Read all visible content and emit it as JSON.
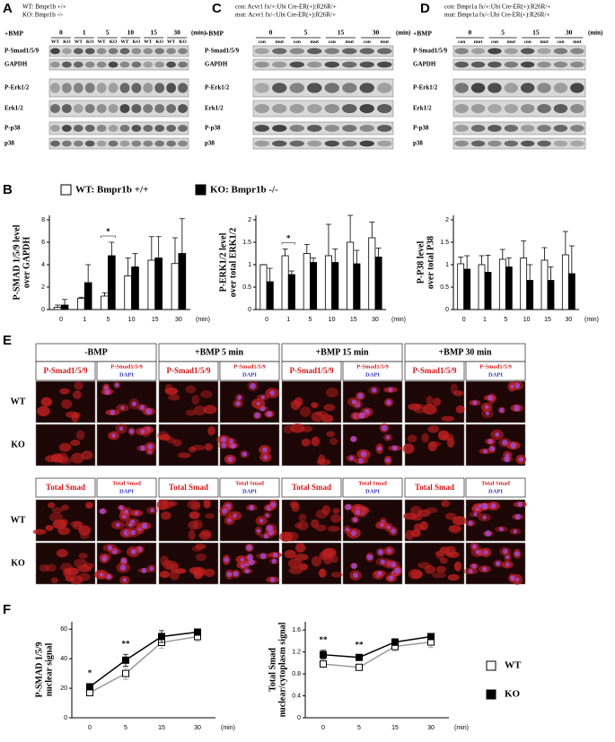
{
  "panel_a": {
    "label": "A",
    "genotype_lines": [
      "WT: Bmpr1b +/+",
      "KO: Bmpr1b -/-"
    ],
    "treatment": "+BMP",
    "timepoints": [
      "0",
      "1",
      "5",
      "10",
      "15",
      "30"
    ],
    "unit": "(min)",
    "lanes": [
      "WT",
      "KO",
      "WT",
      "KO",
      "WT",
      "KO",
      "WT",
      "KO",
      "WT",
      "KO",
      "WT",
      "KO"
    ],
    "rows": [
      "P-Smad1/5/9",
      "GAPDH",
      "P-Erk1/2",
      "Erk1/2",
      "P-p38",
      "p38"
    ]
  },
  "panel_c": {
    "label": "C",
    "genotype_lines": [
      "con: Acvr1 fx/+:Ubi Cre-ER(+):R26R/+",
      "mut: Acvr1 fx/-:Ubi Cre-ER(+):R26R/+"
    ],
    "treatment": "+BMP",
    "timepoints": [
      "0",
      "5",
      "15",
      "30"
    ],
    "unit": "(min)",
    "lanes": [
      "con",
      "mut",
      "con",
      "mut",
      "con",
      "mut",
      "con",
      "mut"
    ],
    "rows": [
      "P-Smad1/5/9",
      "GAPDH",
      "P-Erk1/2",
      "Erk1/2",
      "P-p38",
      "p38"
    ]
  },
  "panel_d": {
    "label": "D",
    "genotype_lines": [
      "con: Bmpr1a fx/+:Ubi Cre-ER(+):R26R/+",
      "mut: Bmpr1a fx/-:Ubi Cre-ER(+):R26R/+"
    ],
    "treatment": "+BMP",
    "timepoints": [
      "0",
      "5",
      "15",
      "30"
    ],
    "unit": "(min)",
    "lanes": [
      "con",
      "mut",
      "con",
      "mut",
      "con",
      "mut",
      "con",
      "mut"
    ],
    "rows": [
      "P-Smad1/5/9",
      "GAPDH",
      "P-Erk1/2",
      "Erk1/2",
      "P-p38",
      "p38"
    ]
  },
  "panel_b": {
    "label": "B"
  },
  "panel_e": {
    "label": "E",
    "columns": [
      "-BMP",
      "+BMP 5 min",
      "+BMP 15 min",
      "+BMP 30 min"
    ],
    "rows": [
      "WT",
      "KO"
    ],
    "blocks": [
      {
        "stain": "P-Smad1/5/9",
        "merge": [
          "P-Smad1/5/9",
          "DAPI"
        ]
      },
      {
        "stain": "Total Smad",
        "merge": [
          "Total Smad",
          "DAPI"
        ]
      }
    ]
  },
  "panel_f": {
    "label": "F"
  },
  "chart_data": [
    {
      "type": "bar",
      "ylabel": [
        "P-SMAD 1/5/9 level",
        "over GAPDH"
      ],
      "xlabel": "(min)",
      "categories": [
        "0",
        "1",
        "5",
        "10",
        "15",
        "30"
      ],
      "series": [
        {
          "name": "WT: Bmpr1b +/+",
          "color": "#ffffff",
          "values": [
            0.2,
            1.0,
            1.2,
            3.0,
            4.4,
            4.1
          ],
          "errors": [
            0.2,
            0.1,
            0.3,
            1.6,
            2.1,
            2.3
          ]
        },
        {
          "name": "KO: Bmpr1b -/-",
          "color": "#000000",
          "values": [
            0.4,
            2.4,
            4.8,
            3.8,
            4.6,
            5.0
          ],
          "errors": [
            0.5,
            1.6,
            1.2,
            1.2,
            1.9,
            3.1
          ]
        }
      ],
      "ylim": [
        0,
        8.4
      ],
      "yticks": [
        0,
        2,
        4,
        6,
        8
      ],
      "annotations": [
        {
          "text": "*",
          "at": "5"
        }
      ]
    },
    {
      "type": "bar",
      "ylabel": [
        "P-ERK1/2 level",
        "over total ERK1/2"
      ],
      "xlabel": "(min)",
      "categories": [
        "0",
        "1",
        "5",
        "10",
        "15",
        "30"
      ],
      "series": [
        {
          "name": "WT: Bmpr1b +/+",
          "color": "#ffffff",
          "values": [
            1.0,
            1.2,
            1.25,
            1.2,
            1.5,
            1.6
          ],
          "errors": [
            0,
            0.15,
            0.2,
            0.7,
            0.6,
            0.35
          ]
        },
        {
          "name": "KO: Bmpr1b -/-",
          "color": "#000000",
          "values": [
            0.62,
            0.78,
            1.05,
            1.05,
            1.02,
            1.17
          ],
          "errors": [
            0.3,
            0.08,
            0.1,
            0.3,
            0.3,
            0.2
          ]
        }
      ],
      "ylim": [
        0,
        2.1
      ],
      "yticks": [
        0,
        0.5,
        1,
        1.5,
        2
      ],
      "annotations": [
        {
          "text": "*",
          "at": "1"
        }
      ]
    },
    {
      "type": "bar",
      "ylabel": [
        "P-P38 level",
        "over total P38"
      ],
      "xlabel": "(min)",
      "categories": [
        "0",
        "1",
        "5",
        "10",
        "15",
        "30"
      ],
      "series": [
        {
          "name": "WT: Bmpr1b +/+",
          "color": "#ffffff",
          "values": [
            1.02,
            1.0,
            1.12,
            1.15,
            1.1,
            1.22
          ],
          "errors": [
            0.15,
            0.2,
            0.22,
            0.38,
            0.28,
            0.52
          ]
        },
        {
          "name": "KO: Bmpr1b -/-",
          "color": "#000000",
          "values": [
            0.9,
            0.83,
            0.95,
            0.65,
            0.65,
            0.8
          ],
          "errors": [
            0.3,
            0.38,
            0.2,
            0.35,
            0.3,
            0.62
          ]
        }
      ],
      "ylim": [
        0,
        2.1
      ],
      "yticks": [
        0,
        0.5,
        1,
        1.5,
        2
      ],
      "annotations": []
    },
    {
      "type": "line",
      "ylabel": [
        "P-SMAD 1/5/9",
        "nuclear signal"
      ],
      "xlabel": "(min)",
      "categories": [
        "0",
        "5",
        "15",
        "30"
      ],
      "series": [
        {
          "name": "WT",
          "color": "#ffffff",
          "line_color": "#999999",
          "values": [
            17,
            30,
            51,
            55
          ],
          "errors": [
            2,
            4,
            4,
            3
          ]
        },
        {
          "name": "KO",
          "color": "#000000",
          "line_color": "#000000",
          "values": [
            21,
            39,
            55,
            58
          ],
          "errors": [
            2,
            4,
            4,
            2
          ]
        }
      ],
      "ylim": [
        0,
        65
      ],
      "yticks": [
        0,
        20,
        40,
        60
      ],
      "annotations": [
        {
          "text": "*",
          "at": "0"
        },
        {
          "text": "**",
          "at": "5"
        }
      ]
    },
    {
      "type": "line",
      "ylabel": [
        "Total Smad",
        "nuclear/cytoplasm signal"
      ],
      "xlabel": "(min)",
      "categories": [
        "0",
        "5",
        "15",
        "30"
      ],
      "series": [
        {
          "name": "WT",
          "color": "#ffffff",
          "line_color": "#999999",
          "values": [
            0.98,
            0.92,
            1.3,
            1.38
          ],
          "errors": [
            0.06,
            0.04,
            0.08,
            0.1
          ]
        },
        {
          "name": "KO",
          "color": "#000000",
          "line_color": "#000000",
          "values": [
            1.15,
            1.1,
            1.38,
            1.48
          ],
          "errors": [
            0.08,
            0.04,
            0.06,
            0.05
          ]
        }
      ],
      "ylim": [
        0,
        1.75
      ],
      "yticks": [
        0,
        0.4,
        0.8,
        1.2,
        1.6
      ],
      "annotations": [
        {
          "text": "**",
          "at": "0"
        },
        {
          "text": "**",
          "at": "5"
        }
      ]
    }
  ]
}
